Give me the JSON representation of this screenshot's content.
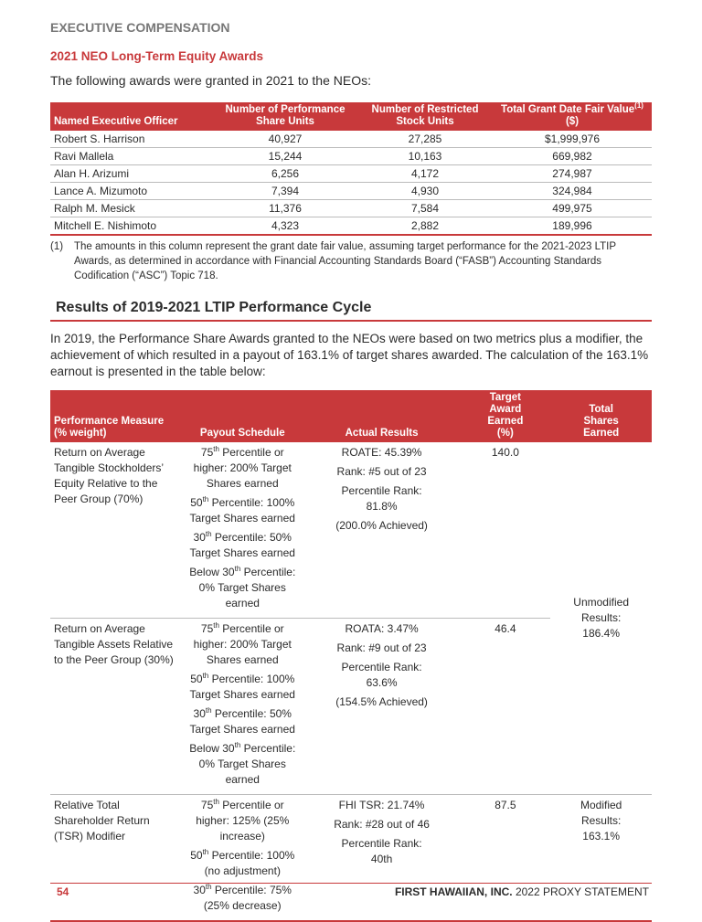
{
  "header": {
    "section": "EXECUTIVE COMPENSATION"
  },
  "awards": {
    "title": "2021 NEO Long-Term Equity Awards",
    "intro": "The following awards were granted in 2021 to the NEOs:",
    "columns": [
      "Named Executive Officer",
      "Number of Performance Share Units",
      "Number of Restricted Stock Units"
    ],
    "fair_value_column": {
      "text": "Total Grant Date Fair Value",
      "sup": "(1)",
      "unit": "($)"
    },
    "rows": [
      [
        "Robert S. Harrison",
        "40,927",
        "27,285",
        "$1,999,976"
      ],
      [
        "Ravi Mallela",
        "15,244",
        "10,163",
        "669,982"
      ],
      [
        "Alan H. Arizumi",
        "6,256",
        "4,172",
        "274,987"
      ],
      [
        "Lance A. Mizumoto",
        "7,394",
        "4,930",
        "324,984"
      ],
      [
        "Ralph M. Mesick",
        "11,376",
        "7,584",
        "499,975"
      ],
      [
        "Mitchell E. Nishimoto",
        "4,323",
        "2,882",
        "189,996"
      ]
    ],
    "footnote": {
      "marker": "(1)",
      "text": "The amounts in this column represent the grant date fair value, assuming target performance for the 2021-2023 LTIP Awards, as determined in accordance with Financial Accounting Standards Board (“FASB”) Accounting Standards Codification (“ASC”) Topic 718."
    }
  },
  "results": {
    "title": "Results of 2019-2021 LTIP Performance Cycle",
    "intro": "In 2019, the Performance Share Awards granted to the NEOs were based on two metrics plus a modifier, the achievement of which resulted in a payout of 163.1% of target shares awarded. The calculation of the 163.1% earnout is presented in the table below:",
    "columns": {
      "measure": "Performance Measure",
      "weight": "(% weight)",
      "payout": "Payout Schedule",
      "actual": "Actual Results",
      "target": "Target Award Earned (%)",
      "total": "Total Shares Earned"
    },
    "rows": [
      {
        "measure": "Return on Average Tangible Stockholders’ Equity Relative to the Peer Group (70%)",
        "payout": [
          {
            "num": "75",
            "sup": "th",
            "text": " Percentile or higher: 200% Target Shares earned"
          },
          {
            "num": "50",
            "sup": "th",
            "text": " Percentile: 100% Target Shares earned"
          },
          {
            "num": "30",
            "sup": "th",
            "text": " Percentile: 50% Target Shares earned"
          },
          {
            "num": "Below 30",
            "sup": "th",
            "text": " Percentile: 0% Target Shares earned"
          }
        ],
        "actual": [
          "ROATE: 45.39%",
          "Rank: #5 out of 23",
          "Percentile Rank: 81.8%",
          "(200.0% Achieved)"
        ],
        "target": "140.0"
      },
      {
        "measure": "Return on Average Tangible Assets Relative to the Peer Group (30%)",
        "payout": [
          {
            "num": "75",
            "sup": "th",
            "text": " Percentile or higher: 200% Target Shares earned"
          },
          {
            "num": "50",
            "sup": "th",
            "text": " Percentile: 100% Target Shares earned"
          },
          {
            "num": "30",
            "sup": "th",
            "text": " Percentile: 50% Target Shares earned"
          },
          {
            "num": "Below 30",
            "sup": "th",
            "text": " Percentile: 0% Target Shares earned"
          }
        ],
        "actual": [
          "ROATA: 3.47%",
          "Rank: #9 out of 23",
          "Percentile Rank: 63.6%",
          "(154.5% Achieved)"
        ],
        "target": "46.4"
      },
      {
        "measure": "Relative Total Shareholder Return (TSR) Modifier",
        "payout": [
          {
            "num": "75",
            "sup": "th",
            "text": " Percentile or higher: 125% (25% increase)"
          },
          {
            "num": "50",
            "sup": "th",
            "text": " Percentile: 100% (no adjustment)"
          },
          {
            "num": "30",
            "sup": "th",
            "text": " Percentile: 75% (25% decrease)"
          }
        ],
        "actual": [
          "FHI TSR: 21.74%",
          "Rank: #28 out of 46",
          "Percentile Rank: 40th"
        ],
        "target": "87.5",
        "total": "Modified Results: 163.1%"
      }
    ],
    "unmodified_total": "Unmodified Results: 186.4%"
  },
  "footer": {
    "page": "54",
    "company": "FIRST HAWAIIAN, INC.",
    "doc": " 2022 PROXY STATEMENT"
  }
}
